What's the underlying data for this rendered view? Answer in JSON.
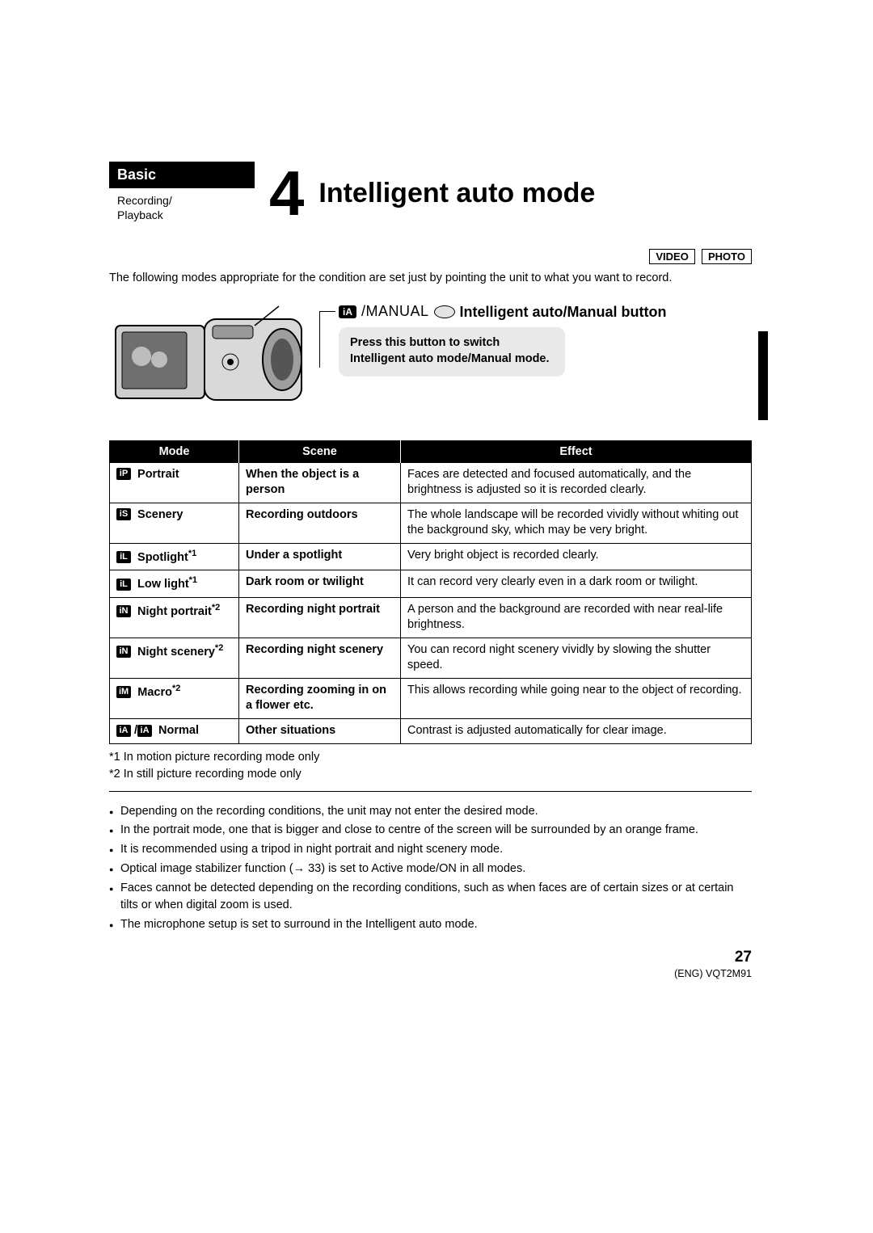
{
  "header": {
    "category": "Basic",
    "subcategory": "Recording/\nPlayback",
    "section_number": "4",
    "title": "Intelligent auto mode"
  },
  "mode_tags": [
    "VIDEO",
    "PHOTO"
  ],
  "intro": "The following modes appropriate for the condition are set just by pointing the unit to what you want to record.",
  "button_block": {
    "ia_chip": "iA",
    "manual_word": "/MANUAL",
    "heading": "Intelligent auto/Manual button",
    "description": "Press this button to switch Intelligent auto mode/Manual mode."
  },
  "table": {
    "headers": [
      "Mode",
      "Scene",
      "Effect"
    ],
    "rows": [
      {
        "icon": "iP",
        "mode": "Portrait",
        "sup": "",
        "scene": "When the object is a person",
        "effect": "Faces are detected and focused automatically, and the brightness is adjusted so it is recorded clearly."
      },
      {
        "icon": "iS",
        "mode": "Scenery",
        "sup": "",
        "scene": "Recording outdoors",
        "effect": "The whole landscape will be recorded vividly without whiting out the background sky, which may be very bright."
      },
      {
        "icon": "iL",
        "mode": "Spotlight",
        "sup": "*1",
        "scene": "Under a spotlight",
        "effect": "Very bright object is recorded clearly."
      },
      {
        "icon": "iL",
        "mode": "Low light",
        "sup": "*1",
        "scene": "Dark room or twilight",
        "effect": "It can record very clearly even in a dark room or twilight."
      },
      {
        "icon": "iN",
        "mode": "Night portrait",
        "sup": "*2",
        "scene": "Recording night portrait",
        "effect": "A person and the background are recorded with near real-life brightness."
      },
      {
        "icon": "iN",
        "mode": "Night scenery",
        "sup": "*2",
        "scene": "Recording night scenery",
        "effect": "You can record night scenery vividly by slowing the shutter speed."
      },
      {
        "icon": "iM",
        "mode": "Macro",
        "sup": "*2",
        "scene": "Recording zooming in on a flower etc.",
        "effect": "This allows recording while going near to the object of recording."
      },
      {
        "icon": "iA",
        "mode": "Normal",
        "sup": "",
        "double_icon": true,
        "scene": "Other situations",
        "effect": "Contrast is adjusted automatically for clear image."
      }
    ]
  },
  "footnotes": [
    "*1   In motion picture recording mode only",
    "*2   In still picture recording mode only"
  ],
  "notes": [
    "Depending on the recording conditions, the unit may not enter the desired mode.",
    "In the portrait mode, one that is bigger and close to centre of the screen will be surrounded by an orange frame.",
    "It is recommended using a tripod in night portrait and night scenery mode.",
    "Optical image stabilizer function (→ 33) is set to Active mode/ON in all modes.",
    "Faces cannot be detected depending on the recording conditions, such as when faces are of certain sizes or at certain tilts or when digital zoom is used.",
    "The microphone setup is set to surround in the Intelligent auto mode."
  ],
  "footer": {
    "page_number": "27",
    "doc_code": "(ENG) VQT2M91"
  },
  "colors": {
    "black": "#000000",
    "grey_box": "#e9e9e9",
    "white": "#ffffff"
  }
}
